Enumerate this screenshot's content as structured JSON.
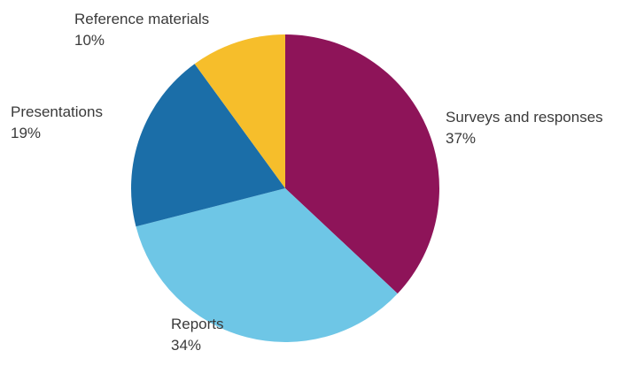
{
  "chart_data": {
    "type": "pie",
    "title": "",
    "slices": [
      {
        "label": "Surveys and responses",
        "value": 37,
        "value_label": "37%",
        "color": "#8E1459"
      },
      {
        "label": "Reports",
        "value": 34,
        "value_label": "34%",
        "color": "#6EC6E6"
      },
      {
        "label": "Presentations",
        "value": 19,
        "value_label": "19%",
        "color": "#1B6EA8"
      },
      {
        "label": "Reference materials",
        "value": 10,
        "value_label": "10%",
        "color": "#F6BE2B"
      }
    ],
    "start": "top",
    "direction": "clockwise",
    "legend": "none"
  }
}
